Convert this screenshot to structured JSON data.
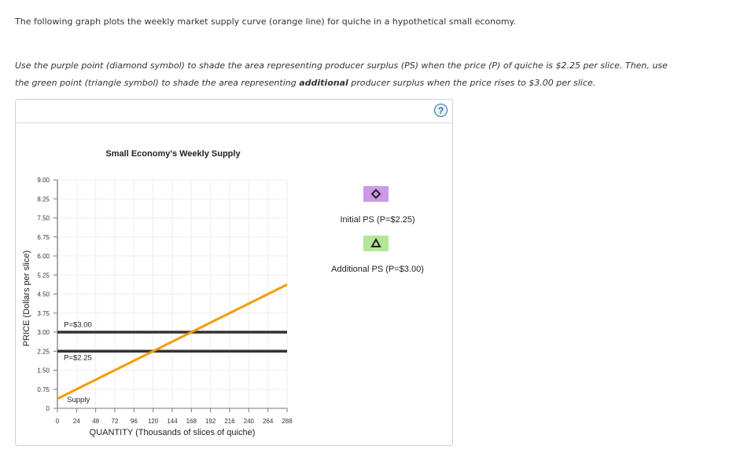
{
  "intro_text": "The following graph plots the weekly market supply curve (orange line) for quiche in a hypothetical small economy.",
  "instructions": {
    "line1": "Use the purple point (diamond symbol) to shade the area representing producer surplus (PS) when the price (P) of quiche is $2.25 per slice. Then, use",
    "line2_pre": "the green point (triangle symbol) to shade the area representing ",
    "line2_bold": "additional",
    "line2_post": " producer surplus when the price rises to $3.00 per slice."
  },
  "help_button": {
    "label": "?"
  },
  "legend": {
    "items": [
      {
        "label": "Initial PS (P=$2.25)",
        "symbol": "diamond",
        "color": "#cc99e6"
      },
      {
        "label": "Additional PS (P=$3.00)",
        "symbol": "triangle",
        "color": "#b3e699"
      }
    ]
  },
  "chart_data": {
    "type": "line",
    "title": "Small Economy's Weekly Supply",
    "xlabel": "QUANTITY (Thousands of slices of quiche)",
    "ylabel": "PRICE (Dollars per slice)",
    "xlim": [
      0,
      288
    ],
    "ylim": [
      0,
      9
    ],
    "x_ticks": [
      "0",
      "24",
      "48",
      "72",
      "96",
      "120",
      "144",
      "168",
      "192",
      "216",
      "240",
      "264",
      "288"
    ],
    "y_ticks": [
      "0",
      "0.75",
      "1.50",
      "2.25",
      "3.00",
      "3.75",
      "4.50",
      "5.25",
      "6.00",
      "6.75",
      "7.50",
      "8.25",
      "9.00"
    ],
    "grid": true,
    "series": [
      {
        "name": "Supply",
        "color": "#f59c00",
        "x": [
          0,
          288
        ],
        "y": [
          0.375,
          4.875
        ]
      },
      {
        "name": "P=$3.00",
        "color": "#333333",
        "x": [
          0,
          288
        ],
        "y": [
          3.0,
          3.0
        ]
      },
      {
        "name": "P=$2.25",
        "color": "#333333",
        "x": [
          0,
          288
        ],
        "y": [
          2.25,
          2.25
        ]
      }
    ],
    "annotations": [
      {
        "text": "P=$3.00",
        "x": 8,
        "y": 3.2
      },
      {
        "text": "P=$2.25",
        "x": 8,
        "y": 1.9
      },
      {
        "text": "Supply",
        "x": 12,
        "y": 0.25
      }
    ]
  }
}
